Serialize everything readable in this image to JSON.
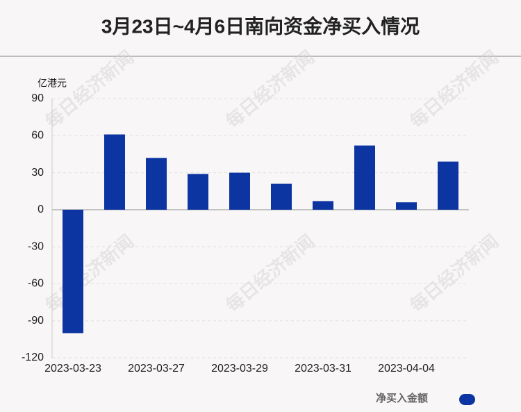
{
  "chart_data": {
    "type": "bar",
    "title": "3月23日~4月6日南向资金净买入情况",
    "y_axis_label": "亿港元",
    "watermark": "每日经济新闻",
    "categories": [
      "2023-03-23",
      null,
      "2023-03-27",
      null,
      "2023-03-29",
      null,
      "2023-03-31",
      null,
      "2023-04-04",
      null
    ],
    "series": [
      {
        "name": "净买入金额",
        "color": "#0d35a1",
        "values": [
          -100,
          61,
          42,
          29,
          30,
          21,
          7,
          52,
          6,
          39
        ]
      }
    ],
    "ylim": [
      -120,
      90
    ],
    "yticks": [
      -120,
      -90,
      -60,
      -30,
      0,
      30,
      60,
      90
    ],
    "grid": true,
    "legend": "bottom-right"
  }
}
